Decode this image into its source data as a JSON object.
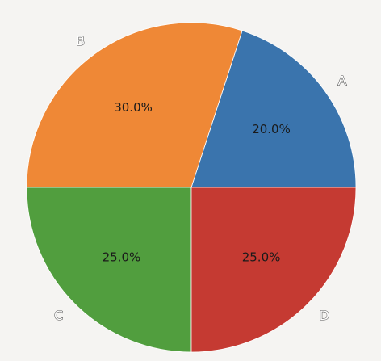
{
  "chart_data": {
    "type": "pie",
    "categories": [
      "A",
      "B",
      "C",
      "D"
    ],
    "values": [
      20,
      30,
      25,
      25
    ],
    "percent_labels": [
      "20.0%",
      "30.0%",
      "25.0%",
      "25.0%"
    ],
    "colors": [
      "#3a74ad",
      "#ef8836",
      "#519e3e",
      "#c53a32"
    ],
    "start_angle_deg": 0,
    "direction": "counterclockwise",
    "title": "",
    "legend": "none"
  },
  "page": {
    "background": "#f5f4f2"
  }
}
